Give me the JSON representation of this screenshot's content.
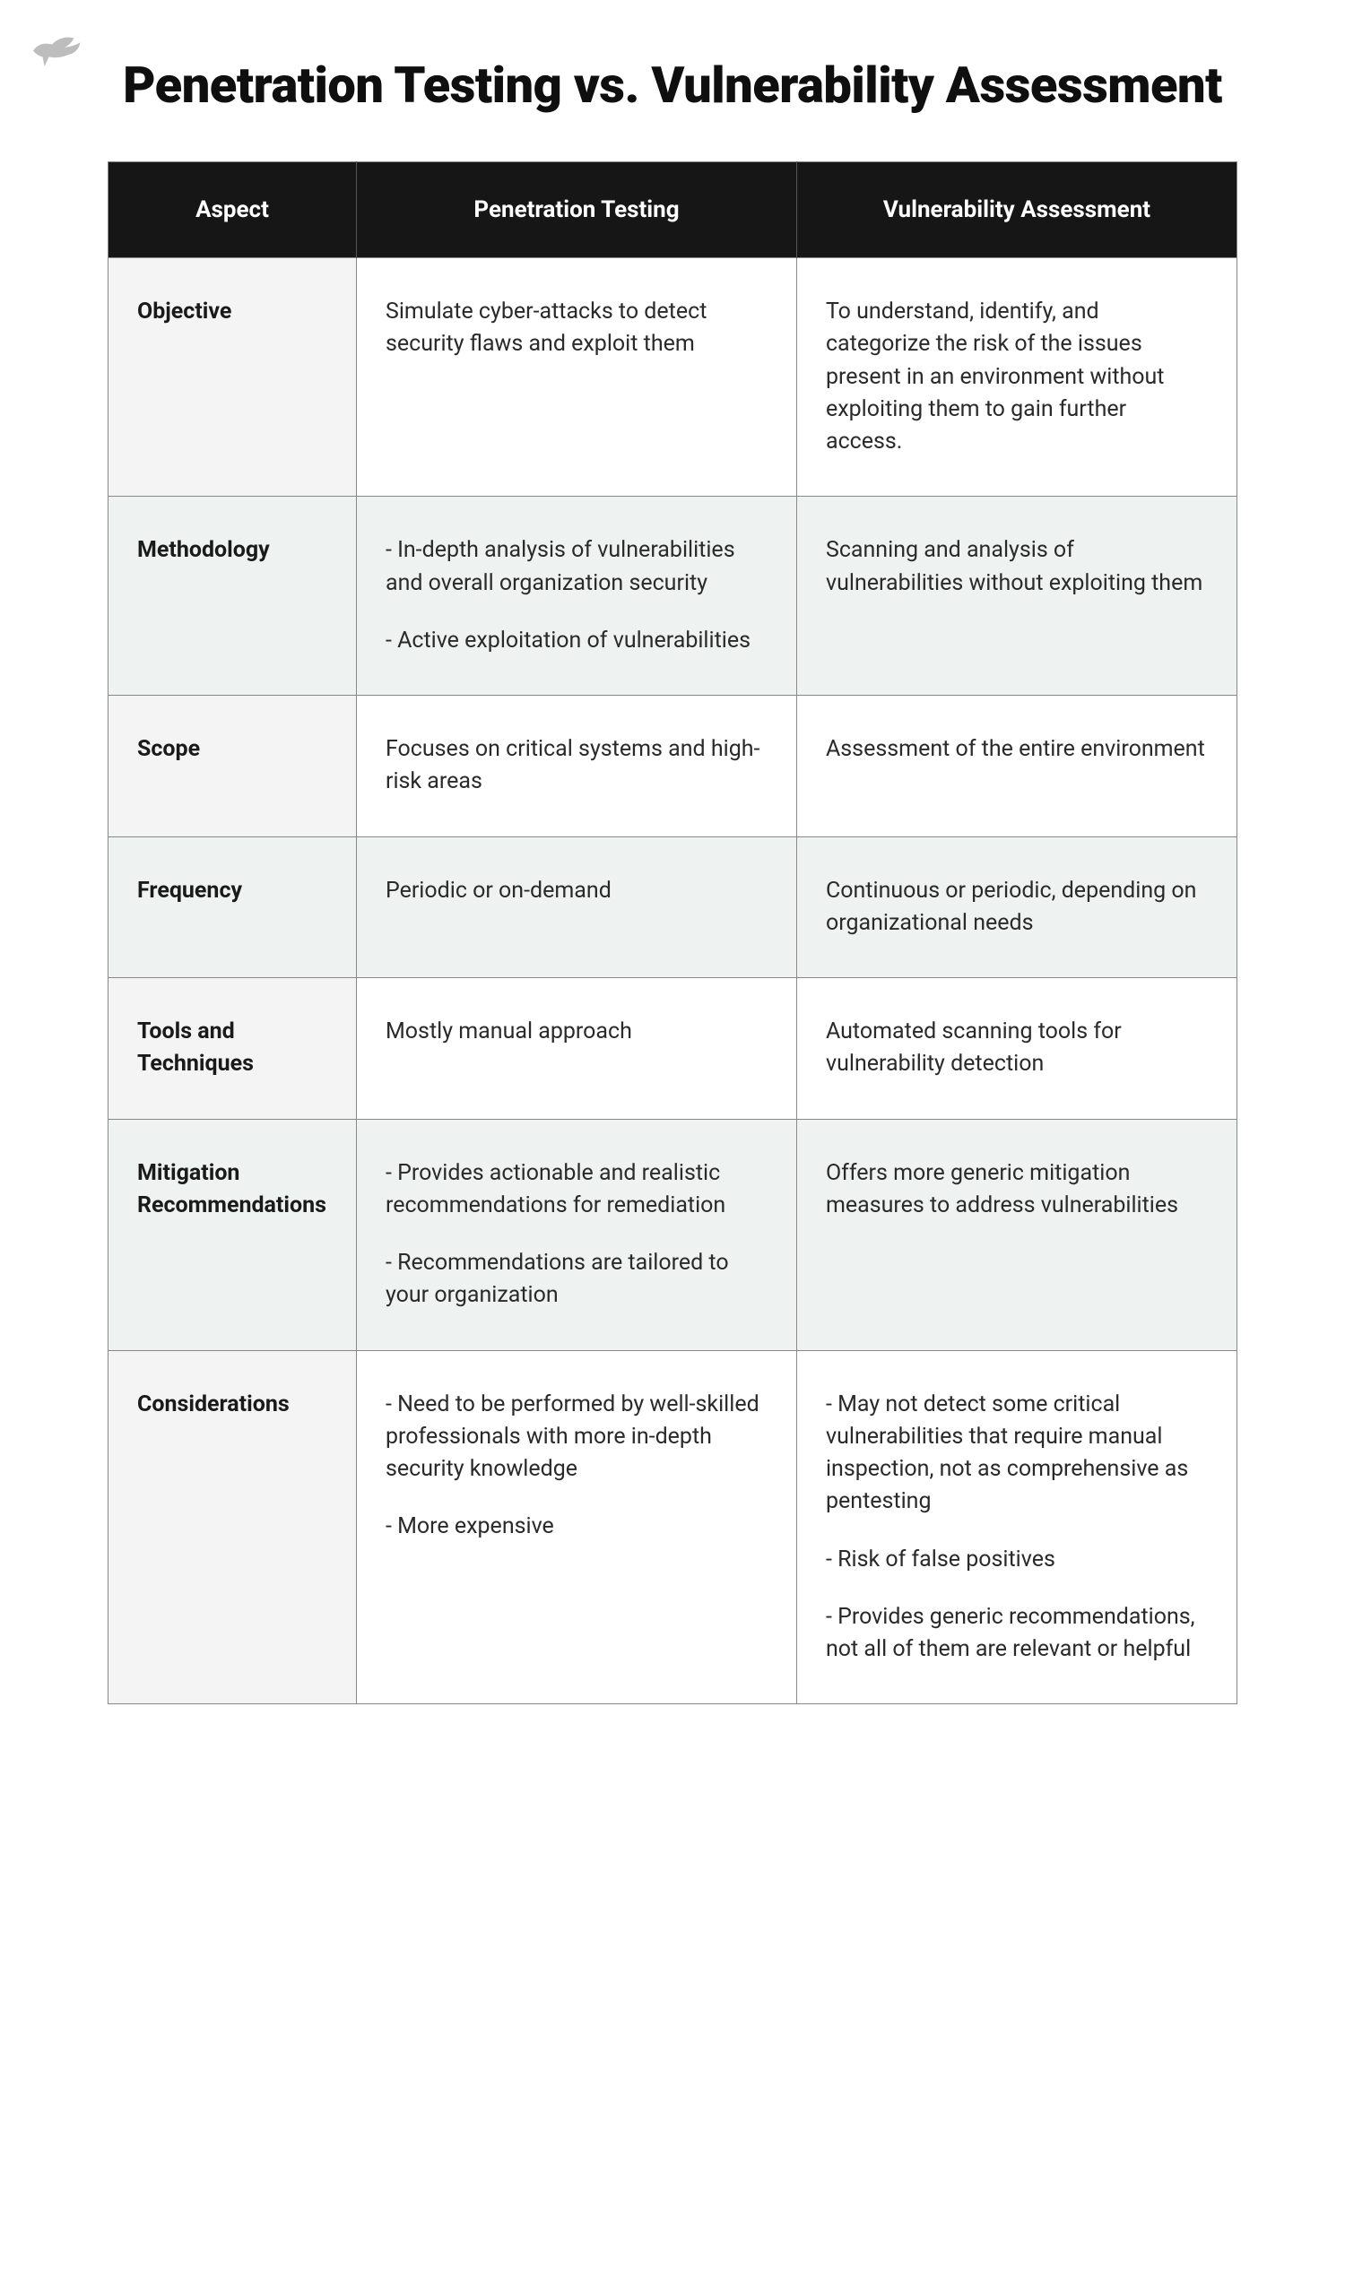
{
  "title": "Penetration Testing vs. Vulnerability Assessment",
  "logo_color": "#bdbdbd",
  "table": {
    "header_bg": "#161616",
    "header_text_color": "#ffffff",
    "border_color": "#888888",
    "alt_row_bg": "#eef3f1",
    "aspect_bg": "#f4f4f4",
    "text_color": "#2a2a2a",
    "title_fontsize": 56,
    "header_fontsize": 26,
    "cell_fontsize": 25,
    "columns": [
      "Aspect",
      "Penetration Testing",
      "Vulnerability Assessment"
    ],
    "rows": [
      {
        "aspect": "Objective",
        "pt": [
          "Simulate cyber-attacks to detect security flaws and exploit them"
        ],
        "va": [
          "To understand, identify, and categorize the risk of the issues present in an environment without exploiting them to gain further access."
        ],
        "alt": false
      },
      {
        "aspect": "Methodology",
        "pt": [
          "-  In-depth analysis of vulnerabilities and overall organization security",
          "-  Active exploitation of vulnerabilities"
        ],
        "va": [
          "Scanning and analysis of vulnerabilities without exploiting them"
        ],
        "alt": true
      },
      {
        "aspect": "Scope",
        "pt": [
          "Focuses on critical systems and high-risk areas"
        ],
        "va": [
          "Assessment of the entire environment"
        ],
        "alt": false
      },
      {
        "aspect": "Frequency",
        "pt": [
          "Periodic or on-demand"
        ],
        "va": [
          "Continuous or periodic, depending on organizational needs"
        ],
        "alt": true
      },
      {
        "aspect": "Tools and Techniques",
        "pt": [
          "Mostly manual approach"
        ],
        "va": [
          "Automated scanning tools for vulnerability detection"
        ],
        "alt": false
      },
      {
        "aspect": "Mitigation Recommendations",
        "pt": [
          "-  Provides actionable and realistic  recommendations for remediation",
          "-  Recommendations are tailored to your organization"
        ],
        "va": [
          "Offers more generic mitigation measures to address vulnerabilities"
        ],
        "alt": true
      },
      {
        "aspect": "Considerations",
        "pt": [
          "-  Need to be performed by well-skilled professionals with more in-depth security knowledge",
          "-  More expensive"
        ],
        "va": [
          "-  May not detect some critical vulnerabilities that require manual inspection, not as comprehensive as pentesting",
          "-  Risk of false positives",
          "-  Provides generic recommendations, not all of them are relevant or helpful"
        ],
        "alt": false
      }
    ]
  }
}
